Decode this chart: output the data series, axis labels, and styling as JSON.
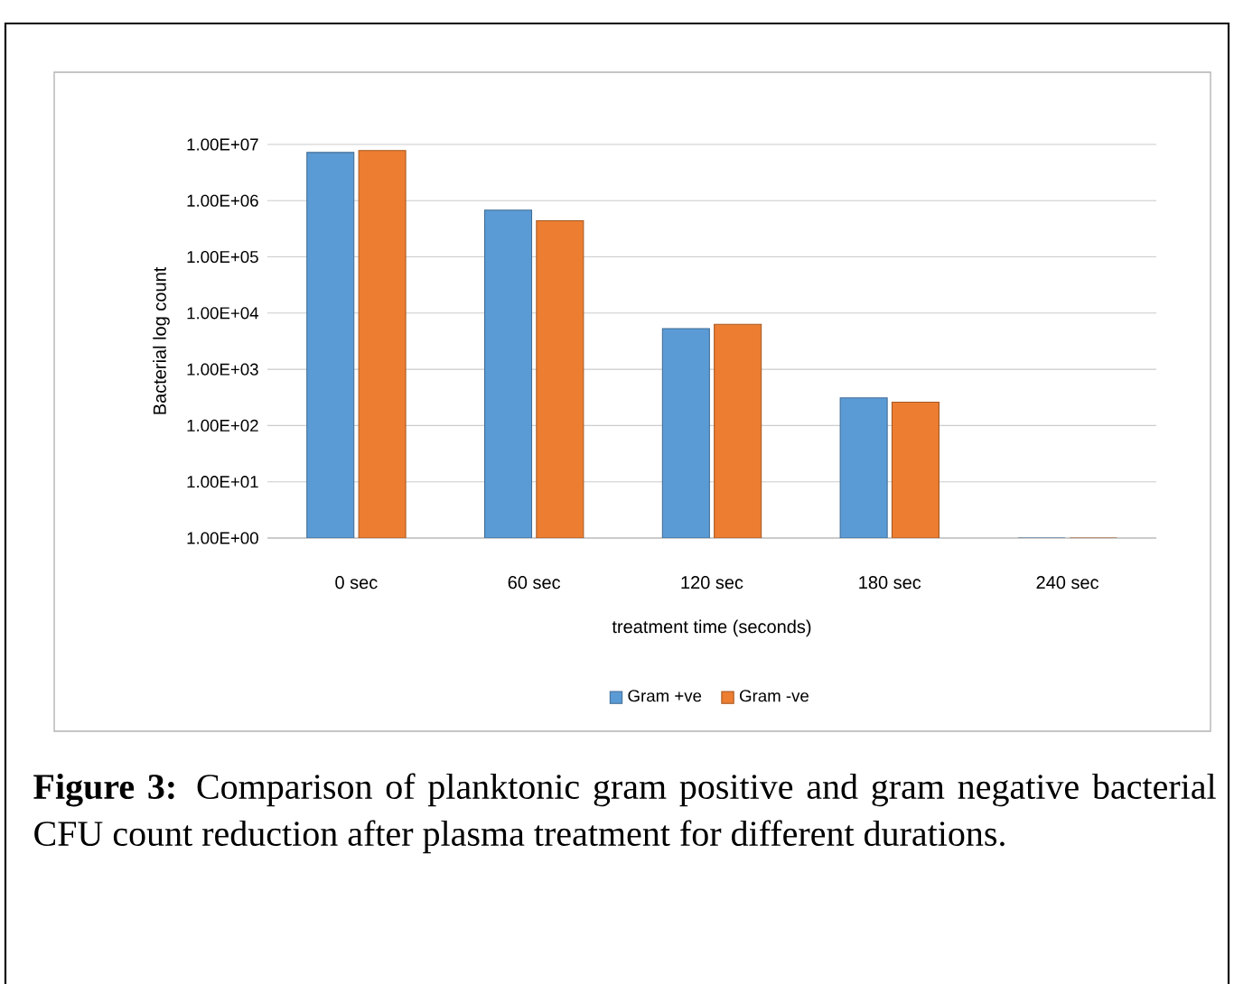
{
  "chart_data": {
    "type": "bar",
    "xlabel": "treatment time (seconds)",
    "ylabel": "Bacterial log count",
    "categories": [
      "0 sec",
      "60 sec",
      "120 sec",
      "180 sec",
      "240 sec"
    ],
    "series": [
      {
        "name": "Gram +ve",
        "color": "#5b9bd5",
        "values": [
          7200000,
          680000,
          5300,
          310,
          1
        ]
      },
      {
        "name": "Gram -ve",
        "color": "#ed7d31",
        "values": [
          7800000,
          440000,
          6300,
          260,
          1
        ]
      }
    ],
    "log": "y",
    "ylim": [
      1,
      10000000
    ],
    "yticks": [
      {
        "value": 1,
        "label": "1.00E+00"
      },
      {
        "value": 10,
        "label": "1.00E+01"
      },
      {
        "value": 100,
        "label": "1.00E+02"
      },
      {
        "value": 1000,
        "label": "1.00E+03"
      },
      {
        "value": 10000,
        "label": "1.00E+04"
      },
      {
        "value": 100000,
        "label": "1.00E+05"
      },
      {
        "value": 1000000,
        "label": "1.00E+06"
      },
      {
        "value": 10000000,
        "label": "1.00E+07"
      }
    ],
    "grid": "y",
    "legend": "bottom",
    "annotations": [
      "**Figure 3:** Comparison of planktonic gram positive and gram negative bacterial CFU count reduction after plasma treatment for different durations."
    ]
  }
}
